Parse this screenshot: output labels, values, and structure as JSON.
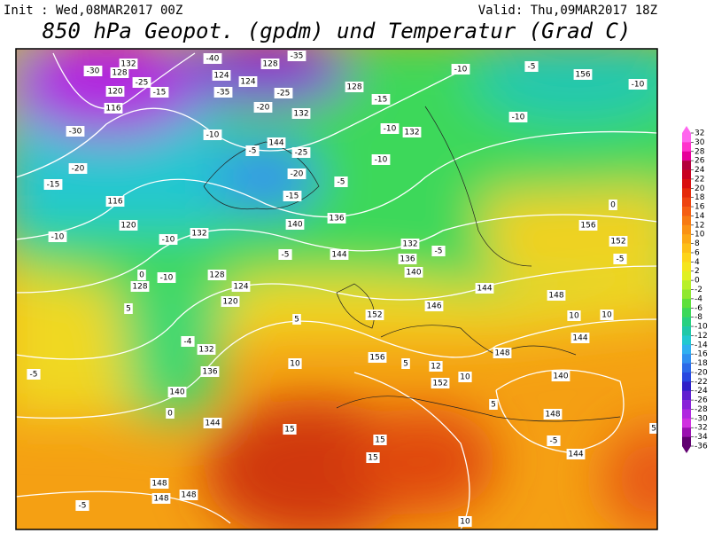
{
  "header": {
    "init": "Init : Wed,08MAR2017 00Z",
    "valid": "Valid: Thu,09MAR2017 18Z",
    "title": "850 hPa Geopot. (gpdm) und Temperatur (Grad C)"
  },
  "colorbar": {
    "ticks": [
      32,
      30,
      28,
      26,
      24,
      22,
      20,
      18,
      16,
      14,
      12,
      10,
      8,
      6,
      4,
      2,
      0,
      -2,
      -4,
      -6,
      -8,
      -10,
      -12,
      -14,
      -16,
      -18,
      -20,
      -22,
      -24,
      -26,
      -28,
      -30,
      -32,
      -34,
      -36
    ],
    "colors": [
      "#ff66ee",
      "#ff33cc",
      "#e6009a",
      "#b3003c",
      "#c8001e",
      "#d90f0f",
      "#e52a0a",
      "#ee4410",
      "#f55e12",
      "#f77a12",
      "#fa9214",
      "#fca816",
      "#fdbf18",
      "#fdd41a",
      "#f5e51c",
      "#e0f020",
      "#b8f028",
      "#8fe830",
      "#5ee03c",
      "#3cd85a",
      "#28d080",
      "#20c8a8",
      "#22c8d0",
      "#30b0f0",
      "#3090f0",
      "#2c6ae8",
      "#2848e0",
      "#3020c8",
      "#6020d0",
      "#8820d8",
      "#b028e0",
      "#d030e0",
      "#9a10b0",
      "#600070"
    ]
  },
  "contour_labels": [
    "-30",
    "132",
    "128",
    "-25",
    "120",
    "-15",
    "116",
    "-30",
    "-20",
    "-15",
    "-40",
    "-35",
    "-35",
    "124",
    "124",
    "128",
    "-25",
    "-20",
    "128",
    "-15",
    "132",
    "-10",
    "-5",
    "144",
    "-25",
    "-20",
    "-15",
    "-10",
    "132",
    "-10",
    "-5",
    "-10",
    "-5",
    "156",
    "-10",
    "-10",
    "116",
    "120",
    "-10",
    "132",
    "-10",
    "140",
    "136",
    "144",
    "-5",
    "132",
    "136",
    "140",
    "-5",
    "156",
    "152",
    "0",
    "128",
    "124",
    "120",
    "-10",
    "128",
    "0",
    "5",
    "-4",
    "132",
    "136",
    "140",
    "0",
    "144",
    "5",
    "10",
    "152",
    "146",
    "144",
    "148",
    "10",
    "10",
    "144",
    "156",
    "5",
    "12",
    "10",
    "152",
    "148",
    "140",
    "5",
    "15",
    "15",
    "15",
    "148",
    "-5",
    "144",
    "5",
    "148",
    "148",
    "148",
    "-5",
    "-5",
    "10",
    "-5"
  ]
}
